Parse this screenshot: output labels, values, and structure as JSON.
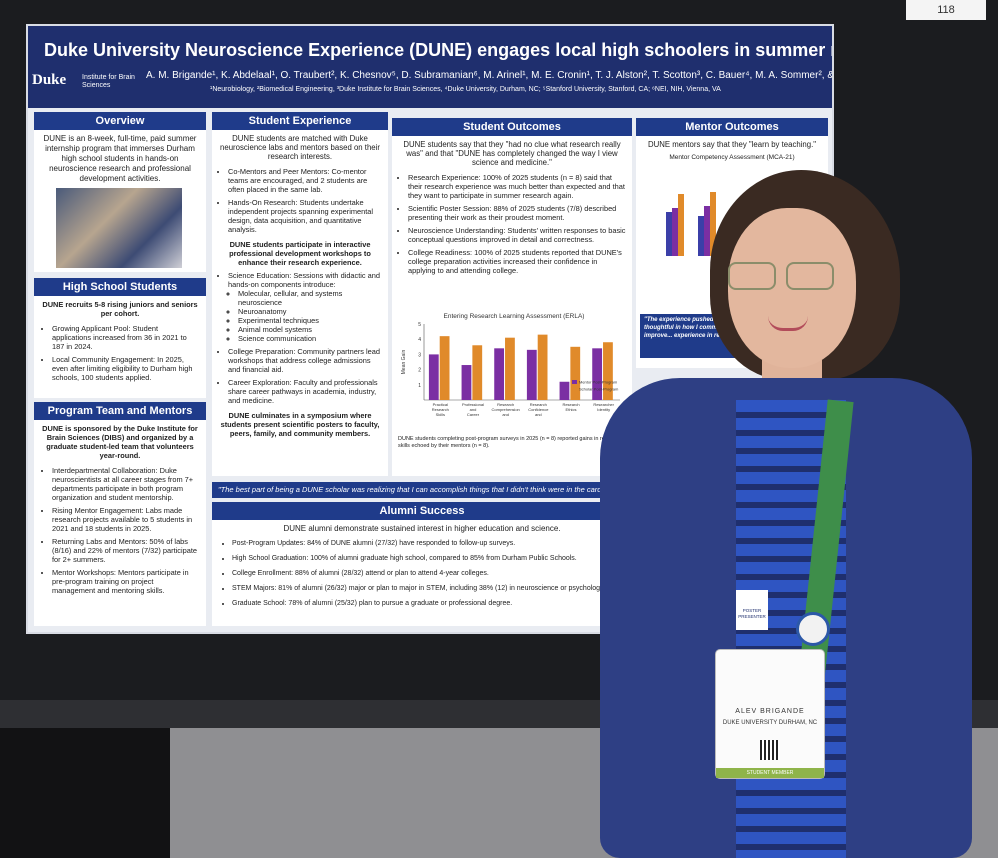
{
  "booth_tag": "118",
  "poster": {
    "title": "Duke University Neuroscience Experience (DUNE) engages local high schoolers in summer research",
    "logo_duke": "Duke",
    "logo_dibs": "Institute for Brain Sciences",
    "authors": "A. M. Brigande¹, K. Abdelaal¹, O. Traubert², K. Chesnov⁵, D. Subramanian⁶, M. Arinel¹, M. E. Cronin¹, T. J. Alston², T. Scotton³, C. Bauer⁴, M. A. Sommer², & L.E. White³",
    "affiliations": "¹Neurobiology, ²Biomedical Engineering, ³Duke Institute for Brain Sciences, ⁴Duke University, Durham, NC; ⁵Stanford University, Stanford, CA; ⁶NEI, NIH, Vienna, VA"
  },
  "overview": {
    "heading": "Overview",
    "body": "DUNE is an 8-week, full-time, paid summer internship program that immerses Durham high school students in hands-on neuroscience research and professional development activities."
  },
  "hs_students": {
    "heading": "High School Students",
    "intro": "DUNE recruits 5-8 rising juniors and seniors per cohort.",
    "items": [
      "Growing Applicant Pool: Student applications increased from 36 in 2021 to 187 in 2024.",
      "Local Community Engagement: In 2025, even after limiting eligibility to Durham high schools, 100 students applied."
    ]
  },
  "program_team": {
    "heading": "Program Team and Mentors",
    "intro": "DUNE is sponsored by the Duke Institute for Brain Sciences (DIBS) and organized by a graduate student-led team that volunteers year-round.",
    "items": [
      "Interdepartmental Collaboration: Duke neuroscientists at all career stages from 7+ departments participate in both program organization and student mentorship.",
      "Rising Mentor Engagement: Labs made research projects available to 5 students in 2021 and 18 students in 2025.",
      "Returning Labs and Mentors: 50% of labs (8/16) and 22% of mentors (7/32) participate for 2+ summers.",
      "Mentor Workshops: Mentors participate in pre-program training on project management and mentoring skills."
    ]
  },
  "student_experience": {
    "heading": "Student Experience",
    "intro": "DUNE students are matched with Duke neuroscience labs and mentors based on their research interests.",
    "items": [
      "Co-Mentors and Peer Mentors: Co-mentor teams are encouraged, and 2 students are often placed in the same lab.",
      "Hands-On Research: Students undertake independent projects spanning experimental design, data acquisition, and quantitative analysis."
    ],
    "mid": "DUNE students participate in interactive professional development workshops to enhance their research experience.",
    "edu": "Science Education: Sessions with didactic and hands-on components introduce:",
    "edu_list": [
      "Molecular, cellular, and systems neuroscience",
      "Neuroanatomy",
      "Experimental techniques",
      "Animal model systems",
      "Science communication"
    ],
    "items2": [
      "College Preparation: Community partners lead workshops that address college admissions and financial aid.",
      "Career Exploration: Faculty and professionals share career pathways in academia, industry, and medicine."
    ],
    "outro": "DUNE culminates in a symposium where students present scientific posters to faculty, peers, family, and community members."
  },
  "student_outcomes": {
    "heading": "Student Outcomes",
    "intro": "DUNE students say that they \"had no clue what research really was\" and that \"DUNE has completely changed the way I view science and medicine.\"",
    "items": [
      "Research Experience: 100% of 2025 students (n = 8) said that their research experience was much better than expected and that they want to participate in summer research again.",
      "Scientific Poster Session: 88% of 2025 students (7/8) described presenting their work as their proudest moment.",
      "Neuroscience Understanding: Students' written responses to basic conceptual questions improved in detail and correctness.",
      "College Readiness: 100% of 2025 students reported that DUNE's college preparation activities increased their confidence in applying to and attending college."
    ],
    "caption": "DUNE students completing post-program surveys in 2025 (n = 8) reported gains in research skills echoed by their mentors (n = 8)."
  },
  "mentor_outcomes": {
    "heading": "Mentor Outcomes",
    "intro": "DUNE mentors say that they \"learn by teaching.\"",
    "chart_title": "Mentor Competency Assessment (MCA-21)",
    "quote": "\"The experience pushed me... expected; I became more thoughtful in how I communicate and more aware of how to improve... experience in relation...\""
  },
  "quote_bar": "\"The best part of being a DUNE scholar was realizing that I can accomplish things that I didn't think were in the cards for me.\"",
  "alumni": {
    "heading": "Alumni Success",
    "intro": "DUNE alumni demonstrate sustained interest in higher education and science.",
    "items": [
      "Post-Program Updates: 84% of DUNE alumni (27/32) have responded to follow-up surveys.",
      "High School Graduation: 100% of alumni graduate high school, compared to 85% from Durham Public Schools.",
      "College Enrollment: 88% of alumni (28/32) attend or plan to attend 4-year colleges.",
      "STEM Majors: 81% of alumni (26/32) major or plan to major in STEM, including 38% (12) in neuroscience or psychology.",
      "Graduate School: 78% of alumni (25/32) plan to pursue a graduate or professional degree."
    ]
  },
  "badge": {
    "presenter": "POSTER PRESENTER",
    "name": "ALEV BRIGANDE",
    "org": "DUKE UNIVERSITY DURHAM, NC",
    "footer": "STUDENT MEMBER"
  },
  "chart_data": {
    "type": "bar",
    "title": "Entering Research Learning Assessment (ERLA)",
    "ylabel": "Mean Gain",
    "ylim": [
      0,
      5
    ],
    "categories": [
      "Practical Research Skills",
      "Professional and Career Development Skills",
      "Research Comprehension and Communication Skills",
      "Research Confidence and Independence",
      "Research Ethics",
      "Researcher Identity"
    ],
    "series": [
      {
        "name": "Mentor Post-Program",
        "color": "#7b2fa3",
        "values": [
          3.0,
          2.3,
          3.4,
          3.3,
          1.2,
          3.4
        ]
      },
      {
        "name": "Scholar Post-Program",
        "color": "#e08a2a",
        "values": [
          4.2,
          3.6,
          4.1,
          4.3,
          3.5,
          3.8
        ]
      }
    ]
  }
}
